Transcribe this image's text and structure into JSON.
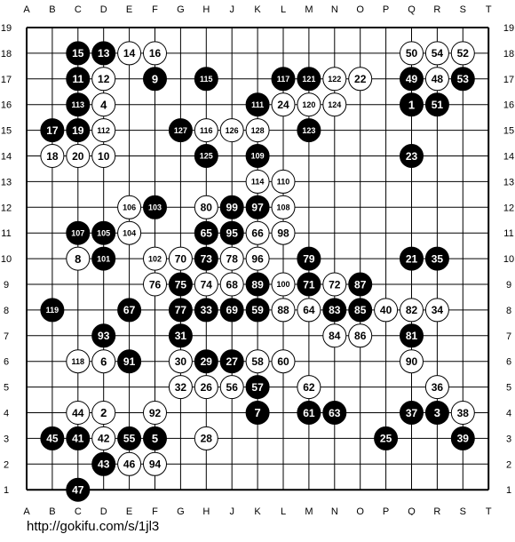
{
  "board": {
    "size": 19,
    "columns": [
      "A",
      "B",
      "C",
      "D",
      "E",
      "F",
      "G",
      "H",
      "J",
      "K",
      "L",
      "M",
      "N",
      "O",
      "P",
      "Q",
      "R",
      "S",
      "T"
    ],
    "rows": [
      "19",
      "18",
      "17",
      "16",
      "15",
      "14",
      "13",
      "12",
      "11",
      "10",
      "9",
      "8",
      "7",
      "6",
      "5",
      "4",
      "3",
      "2",
      "1"
    ],
    "colors": {
      "line": "#000000",
      "black_stone": "#000000",
      "white_stone": "#ffffff"
    },
    "stones": [
      {
        "col": "C",
        "row": 18,
        "color": "black",
        "label": "15"
      },
      {
        "col": "D",
        "row": 18,
        "color": "black",
        "label": "13"
      },
      {
        "col": "E",
        "row": 18,
        "color": "white",
        "label": "14"
      },
      {
        "col": "F",
        "row": 18,
        "color": "white",
        "label": "16"
      },
      {
        "col": "Q",
        "row": 18,
        "color": "white",
        "label": "50"
      },
      {
        "col": "R",
        "row": 18,
        "color": "white",
        "label": "54"
      },
      {
        "col": "S",
        "row": 18,
        "color": "white",
        "label": "52"
      },
      {
        "col": "C",
        "row": 17,
        "color": "black",
        "label": "11"
      },
      {
        "col": "D",
        "row": 17,
        "color": "white",
        "label": "12"
      },
      {
        "col": "F",
        "row": 17,
        "color": "black",
        "label": "9"
      },
      {
        "col": "H",
        "row": 17,
        "color": "black",
        "label": "115"
      },
      {
        "col": "L",
        "row": 17,
        "color": "black",
        "label": "117"
      },
      {
        "col": "M",
        "row": 17,
        "color": "black",
        "label": "121"
      },
      {
        "col": "N",
        "row": 17,
        "color": "white",
        "label": "122"
      },
      {
        "col": "O",
        "row": 17,
        "color": "white",
        "label": "22"
      },
      {
        "col": "Q",
        "row": 17,
        "color": "black",
        "label": "49"
      },
      {
        "col": "R",
        "row": 17,
        "color": "white",
        "label": "48"
      },
      {
        "col": "S",
        "row": 17,
        "color": "black",
        "label": "53"
      },
      {
        "col": "C",
        "row": 16,
        "color": "black",
        "label": "113"
      },
      {
        "col": "D",
        "row": 16,
        "color": "white",
        "label": "4"
      },
      {
        "col": "K",
        "row": 16,
        "color": "black",
        "label": "111"
      },
      {
        "col": "L",
        "row": 16,
        "color": "white",
        "label": "24"
      },
      {
        "col": "M",
        "row": 16,
        "color": "white",
        "label": "120"
      },
      {
        "col": "N",
        "row": 16,
        "color": "white",
        "label": "124"
      },
      {
        "col": "Q",
        "row": 16,
        "color": "black",
        "label": "1"
      },
      {
        "col": "R",
        "row": 16,
        "color": "black",
        "label": "51"
      },
      {
        "col": "B",
        "row": 15,
        "color": "black",
        "label": "17"
      },
      {
        "col": "C",
        "row": 15,
        "color": "black",
        "label": "19"
      },
      {
        "col": "D",
        "row": 15,
        "color": "white",
        "label": "112"
      },
      {
        "col": "G",
        "row": 15,
        "color": "black",
        "label": "127"
      },
      {
        "col": "H",
        "row": 15,
        "color": "white",
        "label": "116"
      },
      {
        "col": "J",
        "row": 15,
        "color": "white",
        "label": "126"
      },
      {
        "col": "K",
        "row": 15,
        "color": "white",
        "label": "128"
      },
      {
        "col": "M",
        "row": 15,
        "color": "black",
        "label": "123"
      },
      {
        "col": "B",
        "row": 14,
        "color": "white",
        "label": "18"
      },
      {
        "col": "C",
        "row": 14,
        "color": "white",
        "label": "20"
      },
      {
        "col": "D",
        "row": 14,
        "color": "white",
        "label": "10"
      },
      {
        "col": "H",
        "row": 14,
        "color": "black",
        "label": "125"
      },
      {
        "col": "K",
        "row": 14,
        "color": "black",
        "label": "109"
      },
      {
        "col": "Q",
        "row": 14,
        "color": "black",
        "label": "23"
      },
      {
        "col": "K",
        "row": 13,
        "color": "white",
        "label": "114"
      },
      {
        "col": "L",
        "row": 13,
        "color": "white",
        "label": "110"
      },
      {
        "col": "E",
        "row": 12,
        "color": "white",
        "label": "106"
      },
      {
        "col": "F",
        "row": 12,
        "color": "black",
        "label": "103"
      },
      {
        "col": "H",
        "row": 12,
        "color": "white",
        "label": "80"
      },
      {
        "col": "J",
        "row": 12,
        "color": "black",
        "label": "99"
      },
      {
        "col": "K",
        "row": 12,
        "color": "black",
        "label": "97"
      },
      {
        "col": "L",
        "row": 12,
        "color": "white",
        "label": "108"
      },
      {
        "col": "C",
        "row": 11,
        "color": "black",
        "label": "107"
      },
      {
        "col": "D",
        "row": 11,
        "color": "black",
        "label": "105"
      },
      {
        "col": "E",
        "row": 11,
        "color": "white",
        "label": "104"
      },
      {
        "col": "H",
        "row": 11,
        "color": "black",
        "label": "65"
      },
      {
        "col": "J",
        "row": 11,
        "color": "black",
        "label": "95"
      },
      {
        "col": "K",
        "row": 11,
        "color": "white",
        "label": "66"
      },
      {
        "col": "L",
        "row": 11,
        "color": "white",
        "label": "98"
      },
      {
        "col": "C",
        "row": 10,
        "color": "white",
        "label": "8"
      },
      {
        "col": "D",
        "row": 10,
        "color": "black",
        "label": "101"
      },
      {
        "col": "F",
        "row": 10,
        "color": "white",
        "label": "102"
      },
      {
        "col": "G",
        "row": 10,
        "color": "white",
        "label": "70"
      },
      {
        "col": "H",
        "row": 10,
        "color": "black",
        "label": "73"
      },
      {
        "col": "J",
        "row": 10,
        "color": "white",
        "label": "78"
      },
      {
        "col": "K",
        "row": 10,
        "color": "white",
        "label": "96"
      },
      {
        "col": "M",
        "row": 10,
        "color": "black",
        "label": "79"
      },
      {
        "col": "Q",
        "row": 10,
        "color": "black",
        "label": "21"
      },
      {
        "col": "R",
        "row": 10,
        "color": "black",
        "label": "35"
      },
      {
        "col": "F",
        "row": 9,
        "color": "white",
        "label": "76"
      },
      {
        "col": "G",
        "row": 9,
        "color": "black",
        "label": "75"
      },
      {
        "col": "H",
        "row": 9,
        "color": "white",
        "label": "74"
      },
      {
        "col": "J",
        "row": 9,
        "color": "white",
        "label": "68"
      },
      {
        "col": "K",
        "row": 9,
        "color": "black",
        "label": "89"
      },
      {
        "col": "L",
        "row": 9,
        "color": "white",
        "label": "100"
      },
      {
        "col": "M",
        "row": 9,
        "color": "black",
        "label": "71"
      },
      {
        "col": "N",
        "row": 9,
        "color": "white",
        "label": "72"
      },
      {
        "col": "O",
        "row": 9,
        "color": "black",
        "label": "87"
      },
      {
        "col": "B",
        "row": 8,
        "color": "black",
        "label": "119"
      },
      {
        "col": "E",
        "row": 8,
        "color": "black",
        "label": "67"
      },
      {
        "col": "G",
        "row": 8,
        "color": "black",
        "label": "77"
      },
      {
        "col": "H",
        "row": 8,
        "color": "black",
        "label": "33"
      },
      {
        "col": "J",
        "row": 8,
        "color": "black",
        "label": "69"
      },
      {
        "col": "K",
        "row": 8,
        "color": "black",
        "label": "59"
      },
      {
        "col": "L",
        "row": 8,
        "color": "white",
        "label": "88"
      },
      {
        "col": "M",
        "row": 8,
        "color": "white",
        "label": "64"
      },
      {
        "col": "N",
        "row": 8,
        "color": "black",
        "label": "83"
      },
      {
        "col": "O",
        "row": 8,
        "color": "black",
        "label": "85"
      },
      {
        "col": "P",
        "row": 8,
        "color": "white",
        "label": "40"
      },
      {
        "col": "Q",
        "row": 8,
        "color": "white",
        "label": "82"
      },
      {
        "col": "R",
        "row": 8,
        "color": "white",
        "label": "34"
      },
      {
        "col": "D",
        "row": 7,
        "color": "black",
        "label": "93"
      },
      {
        "col": "G",
        "row": 7,
        "color": "black",
        "label": "31"
      },
      {
        "col": "N",
        "row": 7,
        "color": "white",
        "label": "84"
      },
      {
        "col": "O",
        "row": 7,
        "color": "white",
        "label": "86"
      },
      {
        "col": "Q",
        "row": 7,
        "color": "black",
        "label": "81"
      },
      {
        "col": "C",
        "row": 6,
        "color": "white",
        "label": "118"
      },
      {
        "col": "D",
        "row": 6,
        "color": "white",
        "label": "6"
      },
      {
        "col": "E",
        "row": 6,
        "color": "black",
        "label": "91"
      },
      {
        "col": "G",
        "row": 6,
        "color": "white",
        "label": "30"
      },
      {
        "col": "H",
        "row": 6,
        "color": "black",
        "label": "29"
      },
      {
        "col": "J",
        "row": 6,
        "color": "black",
        "label": "27"
      },
      {
        "col": "K",
        "row": 6,
        "color": "white",
        "label": "58"
      },
      {
        "col": "L",
        "row": 6,
        "color": "white",
        "label": "60"
      },
      {
        "col": "Q",
        "row": 6,
        "color": "white",
        "label": "90"
      },
      {
        "col": "G",
        "row": 5,
        "color": "white",
        "label": "32"
      },
      {
        "col": "H",
        "row": 5,
        "color": "white",
        "label": "26"
      },
      {
        "col": "J",
        "row": 5,
        "color": "white",
        "label": "56"
      },
      {
        "col": "K",
        "row": 5,
        "color": "black",
        "label": "57"
      },
      {
        "col": "M",
        "row": 5,
        "color": "white",
        "label": "62"
      },
      {
        "col": "R",
        "row": 5,
        "color": "white",
        "label": "36"
      },
      {
        "col": "C",
        "row": 4,
        "color": "white",
        "label": "44"
      },
      {
        "col": "D",
        "row": 4,
        "color": "white",
        "label": "2"
      },
      {
        "col": "F",
        "row": 4,
        "color": "white",
        "label": "92"
      },
      {
        "col": "K",
        "row": 4,
        "color": "black",
        "label": "7"
      },
      {
        "col": "M",
        "row": 4,
        "color": "black",
        "label": "61"
      },
      {
        "col": "N",
        "row": 4,
        "color": "black",
        "label": "63"
      },
      {
        "col": "Q",
        "row": 4,
        "color": "black",
        "label": "37"
      },
      {
        "col": "R",
        "row": 4,
        "color": "black",
        "label": "3"
      },
      {
        "col": "S",
        "row": 4,
        "color": "white",
        "label": "38"
      },
      {
        "col": "B",
        "row": 3,
        "color": "black",
        "label": "45"
      },
      {
        "col": "C",
        "row": 3,
        "color": "black",
        "label": "41"
      },
      {
        "col": "D",
        "row": 3,
        "color": "white",
        "label": "42"
      },
      {
        "col": "E",
        "row": 3,
        "color": "black",
        "label": "55"
      },
      {
        "col": "F",
        "row": 3,
        "color": "black",
        "label": "5"
      },
      {
        "col": "H",
        "row": 3,
        "color": "white",
        "label": "28"
      },
      {
        "col": "P",
        "row": 3,
        "color": "black",
        "label": "25"
      },
      {
        "col": "S",
        "row": 3,
        "color": "black",
        "label": "39"
      },
      {
        "col": "D",
        "row": 2,
        "color": "black",
        "label": "43"
      },
      {
        "col": "E",
        "row": 2,
        "color": "white",
        "label": "46"
      },
      {
        "col": "F",
        "row": 2,
        "color": "white",
        "label": "94"
      },
      {
        "col": "C",
        "row": 1,
        "color": "black",
        "label": "47"
      }
    ]
  },
  "footer": {
    "url": "http://gokifu.com/s/1jl3"
  }
}
